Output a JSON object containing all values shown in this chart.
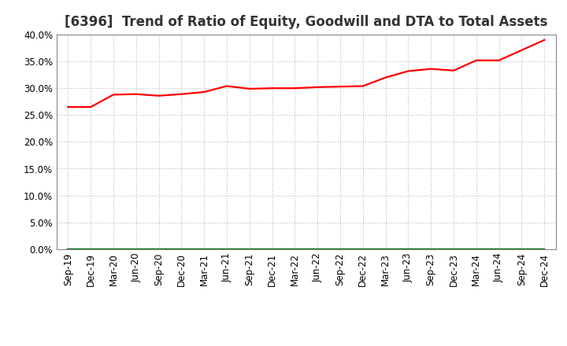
{
  "title": "[6396]  Trend of Ratio of Equity, Goodwill and DTA to Total Assets",
  "x_labels": [
    "Sep-19",
    "Dec-19",
    "Mar-20",
    "Jun-20",
    "Sep-20",
    "Dec-20",
    "Mar-21",
    "Jun-21",
    "Sep-21",
    "Dec-21",
    "Mar-22",
    "Jun-22",
    "Sep-22",
    "Dec-22",
    "Mar-23",
    "Jun-23",
    "Sep-23",
    "Dec-23",
    "Mar-24",
    "Jun-24",
    "Sep-24",
    "Dec-24"
  ],
  "equity": [
    0.265,
    0.265,
    0.288,
    0.289,
    0.286,
    0.289,
    0.293,
    0.304,
    0.299,
    0.3,
    0.3,
    0.302,
    0.303,
    0.304,
    0.32,
    0.332,
    0.336,
    0.333,
    0.352,
    0.352,
    0.371,
    0.39
  ],
  "goodwill": [
    0.0,
    0.0,
    0.0,
    0.0,
    0.0,
    0.0,
    0.0,
    0.0,
    0.0,
    0.0,
    0.0,
    0.0,
    0.0,
    0.0,
    0.0,
    0.0,
    0.0,
    0.0,
    0.0,
    0.0,
    0.0,
    0.0
  ],
  "dta": [
    0.0,
    0.0,
    0.0,
    0.0,
    0.0,
    0.0,
    0.0,
    0.0,
    0.0,
    0.0,
    0.0,
    0.0,
    0.0,
    0.0,
    0.0,
    0.0,
    0.0,
    0.0,
    0.0,
    0.0,
    0.0,
    0.0
  ],
  "equity_color": "#ff0000",
  "goodwill_color": "#0000cc",
  "dta_color": "#007700",
  "ylim": [
    0.0,
    0.4
  ],
  "yticks": [
    0.0,
    0.05,
    0.1,
    0.15,
    0.2,
    0.25,
    0.3,
    0.35,
    0.4
  ],
  "background_color": "#ffffff",
  "plot_bg_color": "#ffffff",
  "grid_color": "#bbbbbb",
  "title_color": "#333333",
  "title_fontsize": 12,
  "tick_fontsize": 8.5,
  "legend_fontsize": 10
}
